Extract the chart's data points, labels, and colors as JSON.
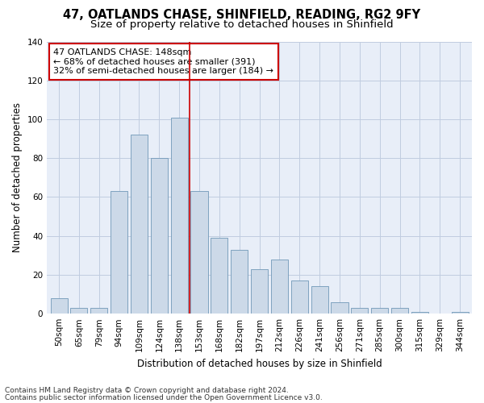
{
  "title": "47, OATLANDS CHASE, SHINFIELD, READING, RG2 9FY",
  "subtitle": "Size of property relative to detached houses in Shinfield",
  "xlabel": "Distribution of detached houses by size in Shinfield",
  "ylabel": "Number of detached properties",
  "bar_labels": [
    "50sqm",
    "65sqm",
    "79sqm",
    "94sqm",
    "109sqm",
    "124sqm",
    "138sqm",
    "153sqm",
    "168sqm",
    "182sqm",
    "197sqm",
    "212sqm",
    "226sqm",
    "241sqm",
    "256sqm",
    "271sqm",
    "285sqm",
    "300sqm",
    "315sqm",
    "329sqm",
    "344sqm"
  ],
  "bar_values": [
    8,
    3,
    3,
    63,
    92,
    80,
    101,
    63,
    39,
    33,
    23,
    28,
    17,
    14,
    6,
    3,
    3,
    3,
    1,
    0,
    1
  ],
  "bar_color": "#ccd9e8",
  "bar_edgecolor": "#7098b8",
  "annotation_text_line1": "47 OATLANDS CHASE: 148sqm",
  "annotation_text_line2": "← 68% of detached houses are smaller (391)",
  "annotation_text_line3": "32% of semi-detached houses are larger (184) →",
  "annotation_box_color": "#ffffff",
  "annotation_box_edgecolor": "#cc0000",
  "vline_color": "#cc0000",
  "vline_x_index": 6.5,
  "ylim": [
    0,
    140
  ],
  "yticks": [
    0,
    20,
    40,
    60,
    80,
    100,
    120,
    140
  ],
  "grid_color": "#c0cce0",
  "background_color": "#e8eef8",
  "footer_line1": "Contains HM Land Registry data © Crown copyright and database right 2024.",
  "footer_line2": "Contains public sector information licensed under the Open Government Licence v3.0.",
  "title_fontsize": 10.5,
  "subtitle_fontsize": 9.5,
  "xlabel_fontsize": 8.5,
  "ylabel_fontsize": 8.5,
  "tick_fontsize": 7.5,
  "annotation_fontsize": 8,
  "footer_fontsize": 6.5
}
